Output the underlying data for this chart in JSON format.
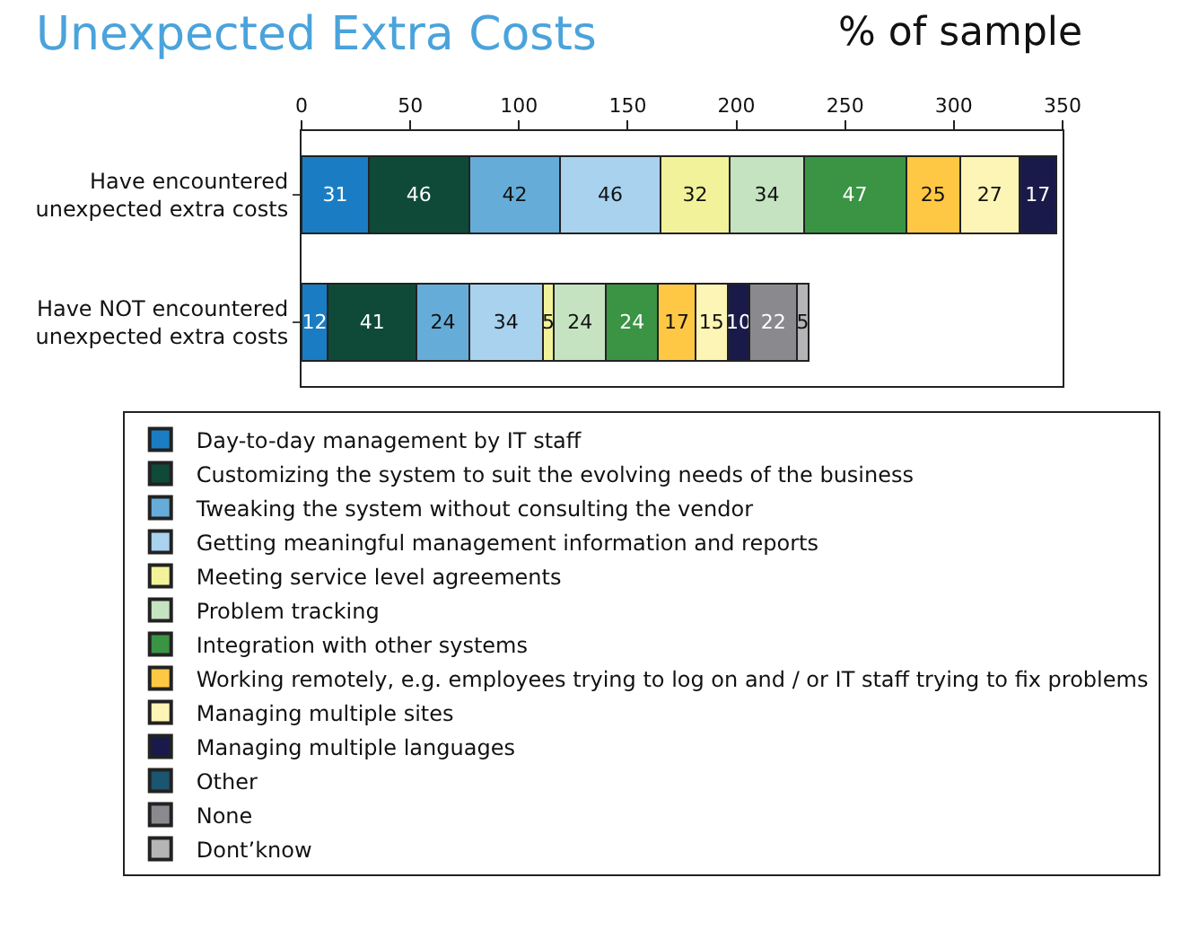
{
  "chart_data": {
    "type": "bar",
    "orientation": "horizontal",
    "stacked": true,
    "title": "Unexpected Extra Costs",
    "subtitle": "% of sample",
    "categories": [
      "Have encountered unexpected extra costs",
      "Have NOT encountered unexpected extra costs"
    ],
    "series": [
      {
        "name": "Day-to-day management by IT staff",
        "color": "#1a7dc4",
        "values": [
          31,
          12
        ]
      },
      {
        "name": "Customizing the system to suit the evolving needs of the business",
        "color": "#0f4a38",
        "values": [
          46,
          41
        ]
      },
      {
        "name": "Tweaking the system without consulting the vendor",
        "color": "#66acd9",
        "values": [
          42,
          24
        ]
      },
      {
        "name": "Getting meaningful management information and reports",
        "color": "#a8d2ee",
        "values": [
          46,
          34
        ]
      },
      {
        "name": "Meeting service level agreements",
        "color": "#f2f29a",
        "values": [
          32,
          5
        ]
      },
      {
        "name": "Problem tracking",
        "color": "#c5e3c0",
        "values": [
          34,
          24
        ]
      },
      {
        "name": "Integration with other systems",
        "color": "#3a9444",
        "values": [
          47,
          24
        ]
      },
      {
        "name": "Working remotely, e.g. employees trying to log on and / or IT staff trying to fix problems",
        "color": "#ffc844",
        "values": [
          25,
          17
        ]
      },
      {
        "name": "Managing multiple sites",
        "color": "#fdf5b5",
        "values": [
          27,
          15
        ]
      },
      {
        "name": "Managing multiple languages",
        "color": "#1a1a4a",
        "values": [
          17,
          10
        ]
      },
      {
        "name": "Other",
        "color": "#1b5570",
        "values": [
          null,
          null
        ]
      },
      {
        "name": "None",
        "color": "#8a8a8e",
        "values": [
          null,
          22
        ]
      },
      {
        "name": "Dont’know",
        "color": "#b5b5b8",
        "values": [
          null,
          5
        ]
      }
    ],
    "xlim": [
      0,
      350
    ],
    "xticks": [
      0,
      50,
      100,
      150,
      200,
      250,
      300,
      350
    ],
    "data_labels": true,
    "legend": "bottom"
  }
}
